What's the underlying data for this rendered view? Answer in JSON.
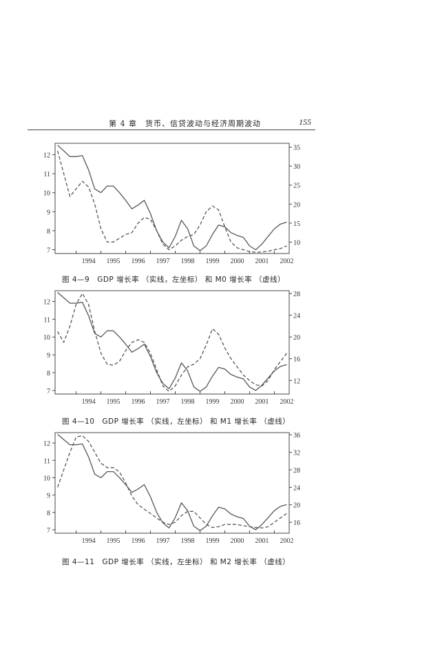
{
  "header": {
    "chapter": "第 4 章　货币、信贷波动与经济周期波动",
    "page_number": "155"
  },
  "captions": [
    "图 4—9　GDP 增长率 （实线，左坐标） 和 M0 增长率 （虚线）",
    "图 4—10　GDP 增长率 （实线，左坐标） 和 M1 增长率 （虚线）",
    "图 4—11　GDP 增长率 （实线，左坐标） 和 M2 增长率 （虚线）"
  ],
  "chart_data": [
    {
      "type": "line",
      "x_categories": [
        "1994",
        "1995",
        "1996",
        "1997",
        "1998",
        "1999",
        "2000",
        "2001",
        "2002"
      ],
      "left_axis": {
        "ylim": [
          6.8,
          12.6
        ],
        "ticks": [
          7,
          8,
          9,
          10,
          11,
          12
        ]
      },
      "right_axis": {
        "ylim": [
          7,
          36
        ],
        "ticks": [
          10,
          15,
          20,
          25,
          30,
          35
        ]
      },
      "grid": false,
      "series": [
        {
          "style": "solid",
          "axis": "left",
          "x": [
            1993.25,
            1993.5,
            1993.75,
            1994.0,
            1994.25,
            1994.5,
            1994.75,
            1995.0,
            1995.25,
            1995.5,
            1995.75,
            1996.0,
            1996.25,
            1996.5,
            1996.75,
            1997.0,
            1997.25,
            1997.5,
            1997.75,
            1998.0,
            1998.25,
            1998.5,
            1998.75,
            1999.0,
            1999.25,
            1999.5,
            1999.75,
            2000.0,
            2000.25,
            2000.5,
            2000.75,
            2001.0,
            2001.25,
            2001.5,
            2001.75,
            2002.0,
            2002.25,
            2002.5
          ],
          "y": [
            12.5,
            12.2,
            11.9,
            11.9,
            11.95,
            11.2,
            10.2,
            10.0,
            10.35,
            10.35,
            10.0,
            9.6,
            9.15,
            9.35,
            9.6,
            8.9,
            8.0,
            7.4,
            7.1,
            7.7,
            8.55,
            8.1,
            7.2,
            6.95,
            7.2,
            7.8,
            8.3,
            8.2,
            7.9,
            7.75,
            7.65,
            7.2,
            7.0,
            7.3,
            7.7,
            8.1,
            8.35,
            8.45
          ]
        },
        {
          "style": "dashed",
          "axis": "right",
          "x": [
            1993.25,
            1993.5,
            1993.75,
            1994.0,
            1994.25,
            1994.5,
            1994.75,
            1995.0,
            1995.25,
            1995.5,
            1995.75,
            1996.0,
            1996.25,
            1996.5,
            1996.75,
            1997.0,
            1997.25,
            1997.5,
            1997.75,
            1998.0,
            1998.25,
            1998.5,
            1998.75,
            1999.0,
            1999.25,
            1999.5,
            1999.75,
            2000.0,
            2000.25,
            2000.5,
            2000.75,
            2001.0,
            2001.25,
            2001.5,
            2001.75,
            2002.0,
            2002.25,
            2002.5
          ],
          "y": [
            34,
            28,
            22,
            24,
            26,
            24.5,
            20,
            13.5,
            10,
            10,
            11,
            12,
            12.5,
            15,
            16.5,
            16,
            13,
            9.5,
            8,
            9,
            10.5,
            11.5,
            12,
            14.5,
            18,
            19.5,
            18.5,
            14,
            10,
            8.5,
            8,
            7.5,
            7.3,
            7.4,
            7.6,
            8,
            8.3,
            9
          ]
        }
      ]
    },
    {
      "type": "line",
      "x_categories": [
        "1994",
        "1995",
        "1996",
        "1997",
        "1998",
        "1999",
        "2000",
        "2001",
        "2002"
      ],
      "left_axis": {
        "ylim": [
          6.8,
          12.6
        ],
        "ticks": [
          7,
          8,
          9,
          10,
          11,
          12
        ]
      },
      "right_axis": {
        "ylim": [
          9.5,
          28.5
        ],
        "ticks": [
          12,
          16,
          20,
          24,
          28
        ]
      },
      "grid": false,
      "series": [
        {
          "style": "solid",
          "axis": "left",
          "x": [
            1993.25,
            1993.5,
            1993.75,
            1994.0,
            1994.25,
            1994.5,
            1994.75,
            1995.0,
            1995.25,
            1995.5,
            1995.75,
            1996.0,
            1996.25,
            1996.5,
            1996.75,
            1997.0,
            1997.25,
            1997.5,
            1997.75,
            1998.0,
            1998.25,
            1998.5,
            1998.75,
            1999.0,
            1999.25,
            1999.5,
            1999.75,
            2000.0,
            2000.25,
            2000.5,
            2000.75,
            2001.0,
            2001.25,
            2001.5,
            2001.75,
            2002.0,
            2002.25,
            2002.5
          ],
          "y": [
            12.5,
            12.2,
            11.9,
            11.9,
            11.95,
            11.2,
            10.2,
            10.0,
            10.35,
            10.35,
            10.0,
            9.6,
            9.15,
            9.35,
            9.6,
            8.9,
            8.0,
            7.4,
            7.1,
            7.7,
            8.55,
            8.1,
            7.2,
            6.95,
            7.2,
            7.8,
            8.3,
            8.2,
            7.9,
            7.75,
            7.65,
            7.2,
            7.0,
            7.3,
            7.7,
            8.1,
            8.35,
            8.45
          ]
        },
        {
          "style": "dashed",
          "axis": "right",
          "x": [
            1993.25,
            1993.5,
            1993.75,
            1994.0,
            1994.25,
            1994.5,
            1994.75,
            1995.0,
            1995.25,
            1995.5,
            1995.75,
            1996.0,
            1996.25,
            1996.5,
            1996.75,
            1997.0,
            1997.25,
            1997.5,
            1997.75,
            1998.0,
            1998.25,
            1998.5,
            1998.75,
            1999.0,
            1999.25,
            1999.5,
            1999.75,
            2000.0,
            2000.25,
            2000.5,
            2000.75,
            2001.0,
            2001.25,
            2001.5,
            2001.75,
            2002.0,
            2002.25,
            2002.5
          ],
          "y": [
            21,
            19,
            22,
            26,
            28,
            26,
            21,
            17,
            15,
            14.8,
            15.5,
            17.5,
            19,
            19.5,
            19,
            17,
            14,
            11,
            10,
            11,
            13,
            14.5,
            15,
            16,
            18.5,
            21.5,
            20.5,
            18,
            16,
            14.5,
            13,
            12,
            11.2,
            11,
            12,
            14,
            15.5,
            17
          ]
        }
      ]
    },
    {
      "type": "line",
      "x_categories": [
        "1994",
        "1995",
        "1996",
        "1997",
        "1998",
        "1999",
        "2000",
        "2001",
        "2002"
      ],
      "left_axis": {
        "ylim": [
          6.8,
          12.6
        ],
        "ticks": [
          7,
          8,
          9,
          10,
          11,
          12
        ]
      },
      "right_axis": {
        "ylim": [
          13.5,
          36.5
        ],
        "ticks": [
          16,
          20,
          24,
          28,
          32,
          36
        ]
      },
      "grid": false,
      "series": [
        {
          "style": "solid",
          "axis": "left",
          "x": [
            1993.25,
            1993.5,
            1993.75,
            1994.0,
            1994.25,
            1994.5,
            1994.75,
            1995.0,
            1995.25,
            1995.5,
            1995.75,
            1996.0,
            1996.25,
            1996.5,
            1996.75,
            1997.0,
            1997.25,
            1997.5,
            1997.75,
            1998.0,
            1998.25,
            1998.5,
            1998.75,
            1999.0,
            1999.25,
            1999.5,
            1999.75,
            2000.0,
            2000.25,
            2000.5,
            2000.75,
            2001.0,
            2001.25,
            2001.5,
            2001.75,
            2002.0,
            2002.25,
            2002.5
          ],
          "y": [
            12.5,
            12.2,
            11.9,
            11.9,
            11.95,
            11.2,
            10.2,
            10.0,
            10.35,
            10.35,
            10.0,
            9.6,
            9.15,
            9.35,
            9.6,
            8.9,
            8.0,
            7.4,
            7.1,
            7.7,
            8.55,
            8.1,
            7.2,
            6.95,
            7.2,
            7.8,
            8.3,
            8.2,
            7.9,
            7.75,
            7.65,
            7.2,
            7.0,
            7.3,
            7.7,
            8.1,
            8.35,
            8.45
          ]
        },
        {
          "style": "dashed",
          "axis": "right",
          "x": [
            1993.25,
            1993.5,
            1993.75,
            1994.0,
            1994.25,
            1994.5,
            1994.75,
            1995.0,
            1995.25,
            1995.5,
            1995.75,
            1996.0,
            1996.25,
            1996.5,
            1996.75,
            1997.0,
            1997.25,
            1997.5,
            1997.75,
            1998.0,
            1998.25,
            1998.5,
            1998.75,
            1999.0,
            1999.25,
            1999.5,
            1999.75,
            2000.0,
            2000.25,
            2000.5,
            2000.75,
            2001.0,
            2001.25,
            2001.5,
            2001.75,
            2002.0,
            2002.25,
            2002.5
          ],
          "y": [
            24,
            28,
            32,
            35.5,
            35.8,
            34.5,
            32,
            29.5,
            28.5,
            28.5,
            27.5,
            25,
            22,
            20,
            19,
            18,
            17,
            16,
            15.5,
            16,
            17.5,
            18.5,
            18.5,
            17,
            15.5,
            14.8,
            15,
            15.5,
            15.5,
            15.5,
            15.2,
            15,
            14.8,
            14.7,
            15,
            16,
            17,
            18
          ]
        }
      ]
    }
  ]
}
